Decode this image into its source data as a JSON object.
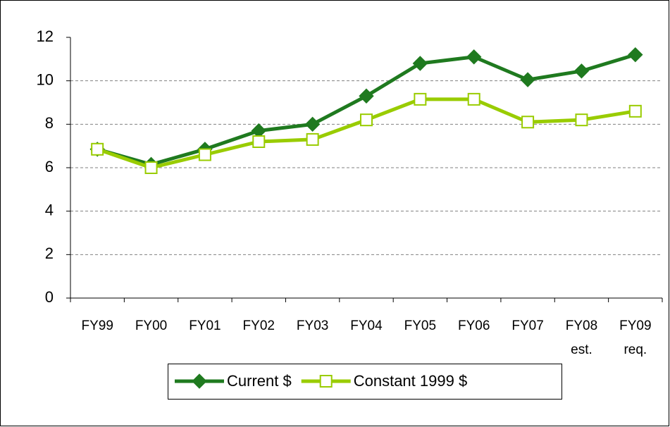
{
  "chart_data": {
    "type": "line",
    "categories": [
      [
        "FY99"
      ],
      [
        "FY00"
      ],
      [
        "FY01"
      ],
      [
        "FY02"
      ],
      [
        "FY03"
      ],
      [
        "FY04"
      ],
      [
        "FY05"
      ],
      [
        "FY06"
      ],
      [
        "FY07"
      ],
      [
        "FY08",
        "est."
      ],
      [
        "FY09",
        "req."
      ]
    ],
    "series": [
      {
        "name": "Current $",
        "color": "#1f7a1f",
        "marker": "diamond",
        "values": [
          6.85,
          6.15,
          6.85,
          7.7,
          8.0,
          9.3,
          10.8,
          11.1,
          10.05,
          10.45,
          11.2
        ]
      },
      {
        "name": "Constant 1999 $",
        "color": "#99cc00",
        "marker": "square",
        "values": [
          6.85,
          6.0,
          6.6,
          7.2,
          7.3,
          8.2,
          9.15,
          9.15,
          8.1,
          8.2,
          8.6
        ]
      }
    ],
    "ylim": [
      0,
      12
    ],
    "yticks": [
      0,
      2,
      4,
      6,
      8,
      10,
      12
    ],
    "grid": true,
    "legend": "bottom"
  }
}
